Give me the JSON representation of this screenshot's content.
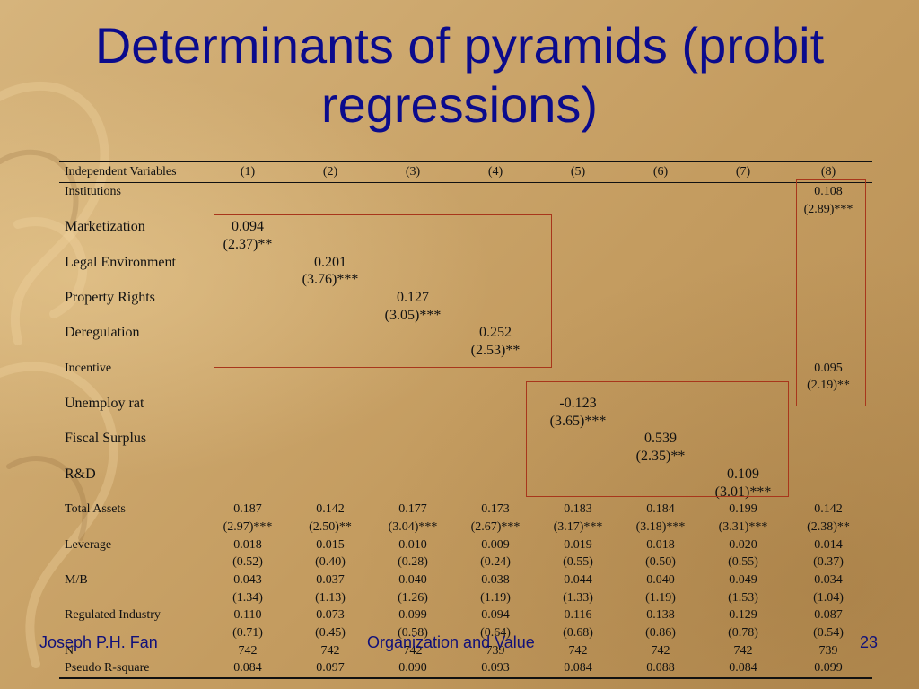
{
  "title": "Determinants of pyramids (probit regressions)",
  "table": {
    "header": [
      "Independent Variables",
      "(1)",
      "(2)",
      "(3)",
      "(4)",
      "(5)",
      "(6)",
      "(7)",
      "(8)"
    ],
    "rows": [
      {
        "label": "Institutions",
        "size": "sm",
        "cells": [
          "",
          "",
          "",
          "",
          "",
          "",
          "",
          "0.108"
        ]
      },
      {
        "label": "",
        "size": "sm",
        "cells": [
          "",
          "",
          "",
          "",
          "",
          "",
          "",
          "(2.89)***"
        ]
      },
      {
        "label": "Marketization",
        "size": "big",
        "cells": [
          "0.094",
          "",
          "",
          "",
          "",
          "",
          "",
          ""
        ]
      },
      {
        "label": "",
        "size": "big",
        "cells": [
          "(2.37)**",
          "",
          "",
          "",
          "",
          "",
          "",
          ""
        ]
      },
      {
        "label": "Legal Environment",
        "size": "big",
        "cells": [
          "",
          "0.201",
          "",
          "",
          "",
          "",
          "",
          ""
        ]
      },
      {
        "label": "",
        "size": "big",
        "cells": [
          "",
          "(3.76)***",
          "",
          "",
          "",
          "",
          "",
          ""
        ]
      },
      {
        "label": "Property Rights",
        "size": "big",
        "cells": [
          "",
          "",
          "0.127",
          "",
          "",
          "",
          "",
          ""
        ]
      },
      {
        "label": "",
        "size": "big",
        "cells": [
          "",
          "",
          "(3.05)***",
          "",
          "",
          "",
          "",
          ""
        ]
      },
      {
        "label": "Deregulation",
        "size": "big",
        "cells": [
          "",
          "",
          "",
          "0.252",
          "",
          "",
          "",
          ""
        ]
      },
      {
        "label": "",
        "size": "big",
        "cells": [
          "",
          "",
          "",
          "(2.53)**",
          "",
          "",
          "",
          ""
        ]
      },
      {
        "label": "Incentive",
        "size": "sm",
        "cells": [
          "",
          "",
          "",
          "",
          "",
          "",
          "",
          "0.095"
        ]
      },
      {
        "label": "",
        "size": "sm",
        "cells": [
          "",
          "",
          "",
          "",
          "",
          "",
          "",
          "(2.19)**"
        ]
      },
      {
        "label": "Unemploy rat",
        "size": "big",
        "cells": [
          "",
          "",
          "",
          "",
          "-0.123",
          "",
          "",
          ""
        ]
      },
      {
        "label": "",
        "size": "big",
        "cells": [
          "",
          "",
          "",
          "",
          "(3.65)***",
          "",
          "",
          ""
        ]
      },
      {
        "label": "Fiscal Surplus",
        "size": "big",
        "cells": [
          "",
          "",
          "",
          "",
          "",
          "0.539",
          "",
          ""
        ]
      },
      {
        "label": "",
        "size": "big",
        "cells": [
          "",
          "",
          "",
          "",
          "",
          "(2.35)**",
          "",
          ""
        ]
      },
      {
        "label": "R&D",
        "size": "big",
        "cells": [
          "",
          "",
          "",
          "",
          "",
          "",
          "0.109",
          ""
        ]
      },
      {
        "label": "",
        "size": "big",
        "cells": [
          "",
          "",
          "",
          "",
          "",
          "",
          "(3.01)***",
          ""
        ]
      },
      {
        "label": "Total Assets",
        "size": "sm",
        "cells": [
          "0.187",
          "0.142",
          "0.177",
          "0.173",
          "0.183",
          "0.184",
          "0.199",
          "0.142"
        ]
      },
      {
        "label": "",
        "size": "sm",
        "cells": [
          "(2.97)***",
          "(2.50)**",
          "(3.04)***",
          "(2.67)***",
          "(3.17)***",
          "(3.18)***",
          "(3.31)***",
          "(2.38)**"
        ]
      },
      {
        "label": "Leverage",
        "size": "sm",
        "cells": [
          "0.018",
          "0.015",
          "0.010",
          "0.009",
          "0.019",
          "0.018",
          "0.020",
          "0.014"
        ]
      },
      {
        "label": "",
        "size": "sm",
        "cells": [
          "(0.52)",
          "(0.40)",
          "(0.28)",
          "(0.24)",
          "(0.55)",
          "(0.50)",
          "(0.55)",
          "(0.37)"
        ]
      },
      {
        "label": "M/B",
        "size": "sm",
        "cells": [
          "0.043",
          "0.037",
          "0.040",
          "0.038",
          "0.044",
          "0.040",
          "0.049",
          "0.034"
        ]
      },
      {
        "label": "",
        "size": "sm",
        "cells": [
          "(1.34)",
          "(1.13)",
          "(1.26)",
          "(1.19)",
          "(1.33)",
          "(1.19)",
          "(1.53)",
          "(1.04)"
        ]
      },
      {
        "label": "Regulated Industry",
        "size": "sm",
        "cells": [
          "0.110",
          "0.073",
          "0.099",
          "0.094",
          "0.116",
          "0.138",
          "0.129",
          "0.087"
        ]
      },
      {
        "label": "",
        "size": "sm",
        "cells": [
          "(0.71)",
          "(0.45)",
          "(0.58)",
          "(0.64)",
          "(0.68)",
          "(0.86)",
          "(0.78)",
          "(0.54)"
        ]
      },
      {
        "label": "N",
        "size": "sm",
        "cells": [
          "742",
          "742",
          "742",
          "739",
          "742",
          "742",
          "742",
          "739"
        ]
      },
      {
        "label": "Pseudo R-square",
        "size": "sm",
        "cells": [
          "0.084",
          "0.097",
          "0.090",
          "0.093",
          "0.084",
          "0.088",
          "0.084",
          "0.099"
        ]
      }
    ]
  },
  "footer": {
    "author": "Joseph P.H. Fan",
    "center": "Organization and Value",
    "page": "23"
  },
  "colors": {
    "title": "#0b0b8c",
    "box": "#a8361b",
    "footer": "#10107a"
  }
}
